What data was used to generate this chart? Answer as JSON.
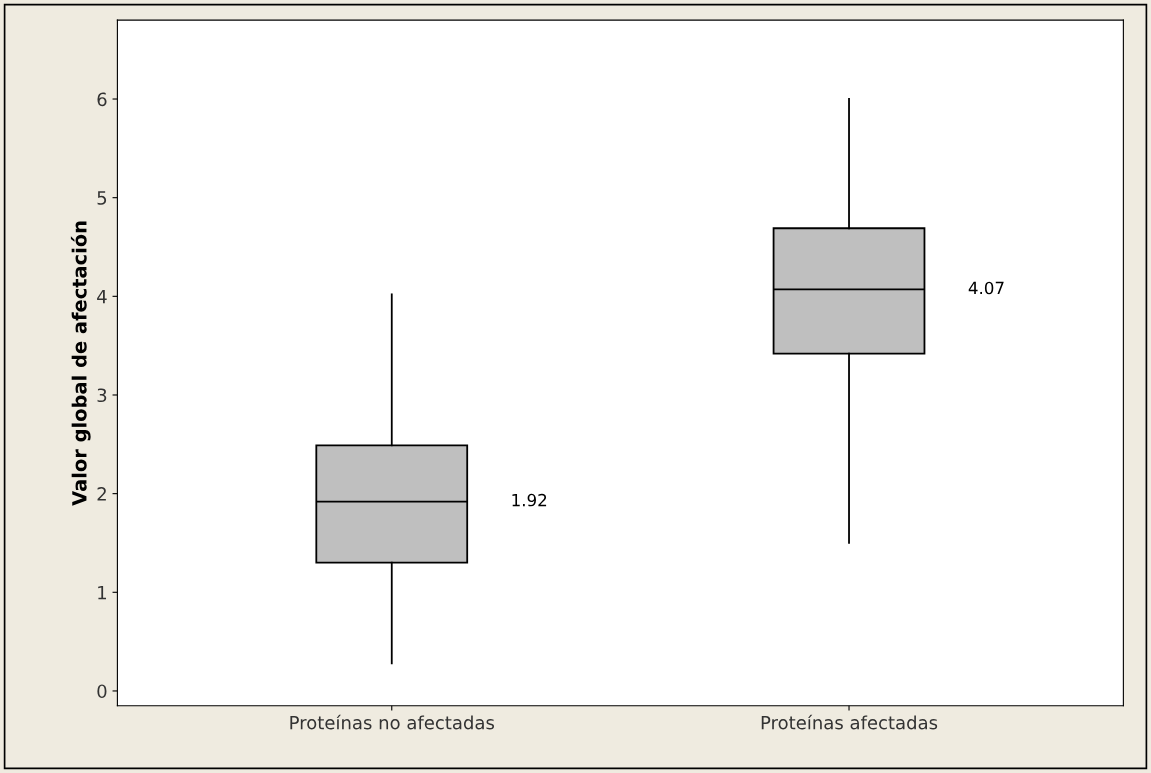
{
  "chart_data": {
    "type": "box",
    "ylabel": "Valor global de afectación",
    "categories": [
      "Proteínas no afectadas",
      "Proteínas afectadas"
    ],
    "series": [
      {
        "color": "#bfbfbf",
        "boxes": [
          {
            "low": 0.28,
            "q1": 1.3,
            "median": 1.92,
            "q3": 2.49,
            "high": 4.02
          },
          {
            "low": 1.5,
            "q1": 3.42,
            "median": 4.07,
            "q3": 4.69,
            "high": 6.0
          }
        ]
      }
    ],
    "ylim": [
      -0.15,
      6.8
    ],
    "yticks": [
      0,
      1,
      2,
      3,
      4,
      5,
      6
    ],
    "grid": false,
    "annotations": [
      "1.92",
      "4.07"
    ]
  }
}
